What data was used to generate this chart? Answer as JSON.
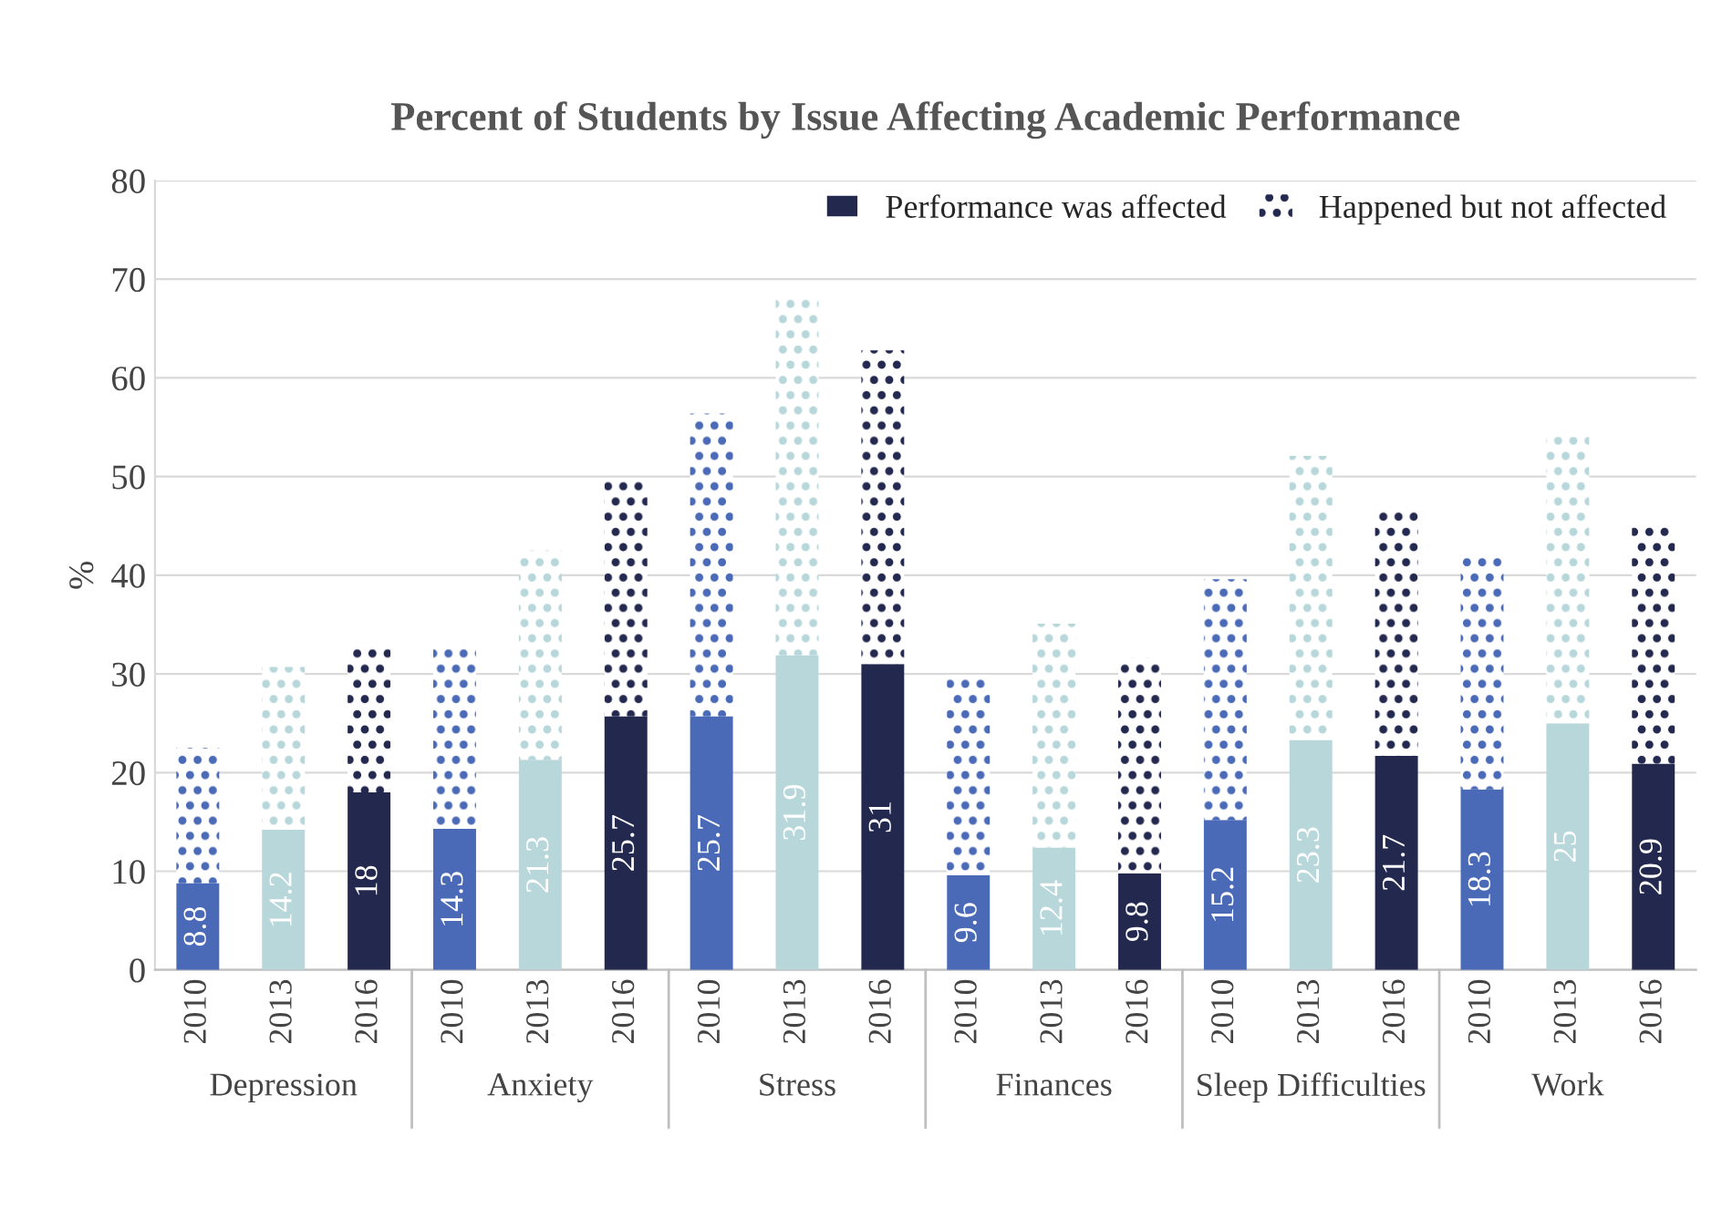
{
  "chart_data": {
    "type": "bar",
    "title": "Percent of Students by Issue Affecting Academic Performance",
    "ylabel": "%",
    "categories": [
      "2010",
      "2013",
      "2016",
      "2010",
      "2013",
      "2016",
      "2010",
      "2013",
      "2016",
      "2010",
      "2013",
      "2016",
      "2010",
      "2013",
      "2016",
      "2010",
      "2013",
      "2016"
    ],
    "annotations": [
      "Depression",
      "Anxiety",
      "Stress",
      "Finances",
      "Sleep Difficulties",
      "Work"
    ],
    "stacked": true,
    "series": [
      {
        "name": "Performance was affected",
        "color": "#23284f",
        "colors": [
          "#4a6ab8",
          "#b7d7da",
          "#23284f",
          "#4a6ab8",
          "#b7d7da",
          "#23284f",
          "#4a6ab8",
          "#b7d7da",
          "#23284f",
          "#4a6ab8",
          "#b7d7da",
          "#23284f",
          "#4a6ab8",
          "#b7d7da",
          "#23284f",
          "#4a6ab8",
          "#b7d7da",
          "#23284f"
        ],
        "values": [
          8.8,
          14.2,
          18,
          14.3,
          21.3,
          25.7,
          25.7,
          31.9,
          31,
          9.6,
          12.4,
          9.8,
          15.2,
          23.3,
          21.7,
          18.3,
          25,
          20.9
        ],
        "value_labels": [
          "8.8",
          "14.2",
          "18",
          "14.3",
          "21.3",
          "25.7",
          "25.7",
          "31.9",
          "31",
          "9.6",
          "12.4",
          "9.8",
          "15.2",
          "23.3",
          "21.7",
          "18.3",
          "25",
          "20.9"
        ]
      },
      {
        "name": "Happened but not affected",
        "color": "#23284f",
        "colors": [
          "#4a6ab8",
          "#b7d7da",
          "#23284f",
          "#4a6ab8",
          "#b7d7da",
          "#23284f",
          "#4a6ab8",
          "#b7d7da",
          "#23284f",
          "#4a6ab8",
          "#b7d7da",
          "#23284f",
          "#4a6ab8",
          "#b7d7da",
          "#23284f",
          "#4a6ab8",
          "#b7d7da",
          "#23284f"
        ],
        "values": [
          13.7,
          16.5,
          15.1,
          18.4,
          21.2,
          23.8,
          30.7,
          36.3,
          31.8,
          20.3,
          22.7,
          21.8,
          24.4,
          28.8,
          25.3,
          23.7,
          29.0,
          24.0
        ]
      }
    ],
    "ylim": [
      0,
      80
    ],
    "yticks": [
      0,
      10,
      20,
      30,
      40,
      50,
      60,
      70,
      80
    ],
    "grid": "y",
    "legend": "top right"
  }
}
